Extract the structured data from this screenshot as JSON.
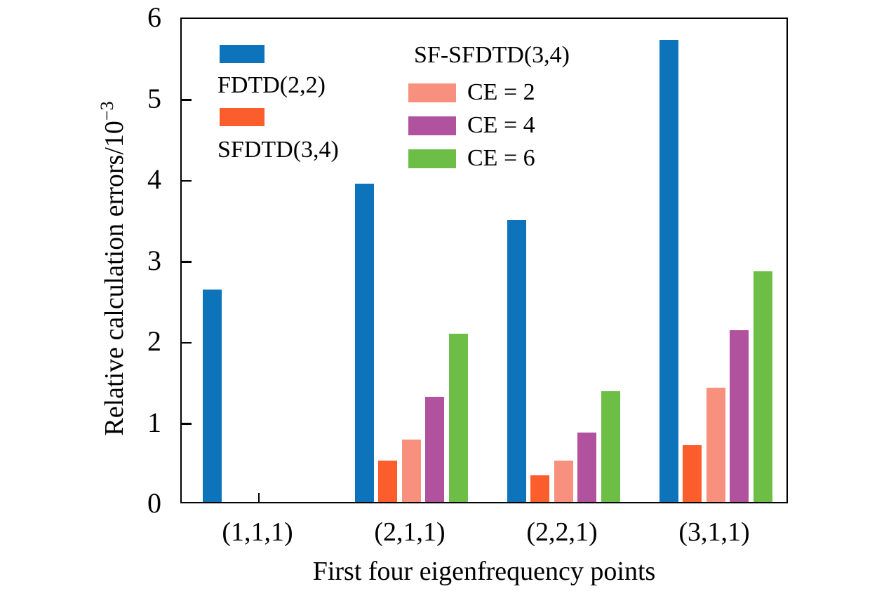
{
  "figure": {
    "xlabel": "First four eigenfrequency points",
    "ylabel_main": "Relative calculation errors/10",
    "ylabel_exp": "−3"
  },
  "legend": {
    "col1": [
      {
        "label": "FDTD(2,2)"
      },
      {
        "label": "SFDTD(3,4)"
      }
    ],
    "col2_header": "SF-SFDTD(3,4)",
    "col2": [
      {
        "label": "CE = 2"
      },
      {
        "label": "CE = 4"
      },
      {
        "label": "CE = 6"
      }
    ]
  },
  "chart_data": {
    "type": "bar",
    "title": "",
    "xlabel": "First four eigenfrequency points",
    "ylabel": "Relative calculation errors/10⁻³",
    "categories": [
      "(1,1,1)",
      "(2,1,1)",
      "(2,2,1)",
      "(3,1,1)"
    ],
    "series": [
      {
        "name": "FDTD(2,2)",
        "color": "#0d74bb",
        "values": [
          2.62,
          3.93,
          3.48,
          5.71
        ]
      },
      {
        "name": "SFDTD(3,4)",
        "color": "#fc5d2c",
        "values": [
          0,
          0.51,
          0.33,
          0.7
        ]
      },
      {
        "name": "SF-SFDTD(3,4) CE = 2",
        "color": "#f8907e",
        "values": [
          0,
          0.77,
          0.51,
          1.41
        ]
      },
      {
        "name": "SF-SFDTD(3,4) CE = 4",
        "color": "#b1529f",
        "values": [
          0,
          1.3,
          0.86,
          2.12
        ]
      },
      {
        "name": "SF-SFDTD(3,4) CE = 6",
        "color": "#6cbe46",
        "values": [
          0,
          2.08,
          1.37,
          2.85
        ]
      }
    ],
    "ylim": [
      0,
      6
    ],
    "yticks": [
      0,
      1,
      2,
      3,
      4,
      5,
      6
    ],
    "grid": false,
    "legend_position": "upper-left-inside",
    "axis_color": "#000000",
    "background_color": "#ffffff"
  }
}
